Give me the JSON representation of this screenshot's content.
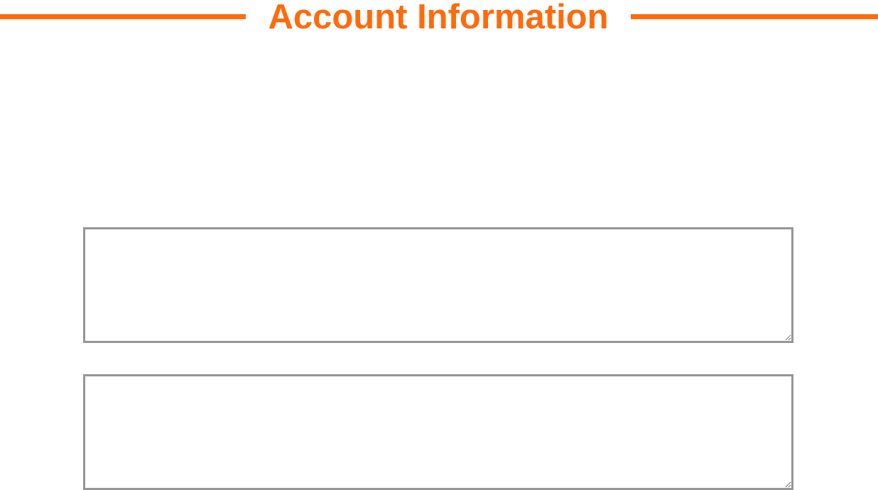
{
  "header": {
    "title": "Account Information"
  },
  "fields": [
    {
      "value": "",
      "placeholder": ""
    },
    {
      "value": "",
      "placeholder": ""
    }
  ],
  "colors": {
    "accent": "#ff6a0d",
    "field_border": "#969696",
    "background": "#ffffff"
  }
}
